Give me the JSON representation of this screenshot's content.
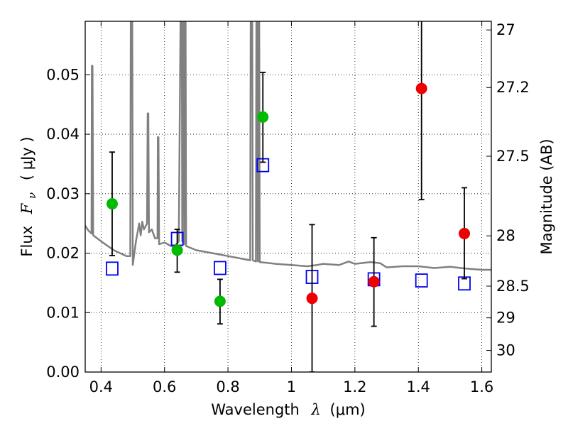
{
  "chart_data": {
    "type": "scatter",
    "title": "",
    "xlabel_prefix": "Wavelength",
    "xlabel_symbol": "λ",
    "xlabel_unit": "(μm)",
    "ylabel_prefix": "Flux",
    "ylabel_symbol": "F",
    "ylabel_subscript": "ν",
    "ylabel_unit": "( μJy )",
    "ylabel_right": "Magnitude (AB)",
    "xlim": [
      0.35,
      1.63
    ],
    "ylim": [
      0.0,
      0.059
    ],
    "grid": true,
    "x_ticks": [
      0.4,
      0.6,
      0.8,
      1.0,
      1.2,
      1.4,
      1.6
    ],
    "x_tick_labels": [
      "0.4",
      "0.6",
      "0.8",
      "1",
      "1.2",
      "1.4",
      "1.6"
    ],
    "y_ticks": [
      0.0,
      0.01,
      0.02,
      0.03,
      0.04,
      0.05
    ],
    "y_tick_labels": [
      "0.00",
      "0.01",
      "0.02",
      "0.03",
      "0.04",
      "0.05"
    ],
    "right_ticks": [
      {
        "mag": 27,
        "label": "27"
      },
      {
        "mag": 27.2,
        "label": "27.2"
      },
      {
        "mag": 27.5,
        "label": "27.5"
      },
      {
        "mag": 28,
        "label": "28"
      },
      {
        "mag": 28.5,
        "label": "28.5"
      },
      {
        "mag": 29,
        "label": "29"
      },
      {
        "mag": 30,
        "label": "30"
      }
    ],
    "series": [
      {
        "marker": "circle",
        "color": "#00bb00",
        "points": [
          {
            "x": 0.435,
            "y": 0.0283,
            "err_low": 0.0196,
            "err_high": 0.037
          },
          {
            "x": 0.64,
            "y": 0.0205,
            "err_low": 0.0168,
            "err_high": 0.024
          },
          {
            "x": 0.775,
            "y": 0.0119,
            "err_low": 0.0081,
            "err_high": 0.0156
          },
          {
            "x": 0.91,
            "y": 0.0429,
            "err_low": 0.0353,
            "err_high": 0.0504
          }
        ]
      },
      {
        "marker": "circle",
        "color": "#ee0000",
        "points": [
          {
            "x": 1.065,
            "y": 0.0124,
            "err_low": 0.0,
            "err_high": 0.0248
          },
          {
            "x": 1.26,
            "y": 0.0152,
            "err_low": 0.0077,
            "err_high": 0.0226
          },
          {
            "x": 1.41,
            "y": 0.0477,
            "err_low": 0.029,
            "err_high": 0.0595
          },
          {
            "x": 1.545,
            "y": 0.0233,
            "err_low": 0.0157,
            "err_high": 0.031
          }
        ]
      },
      {
        "marker": "square",
        "color": "#0000ee",
        "points": [
          {
            "x": 0.435,
            "y": 0.0174
          },
          {
            "x": 0.64,
            "y": 0.0224
          },
          {
            "x": 0.775,
            "y": 0.0175
          },
          {
            "x": 0.91,
            "y": 0.0348
          },
          {
            "x": 1.065,
            "y": 0.016
          },
          {
            "x": 1.26,
            "y": 0.0156
          },
          {
            "x": 1.41,
            "y": 0.0154
          },
          {
            "x": 1.545,
            "y": 0.0149
          }
        ]
      },
      {
        "marker": "line",
        "color": "#808080",
        "points": [
          [
            0.35,
            0.0246
          ],
          [
            0.36,
            0.0238
          ],
          [
            0.37,
            0.0233
          ],
          [
            0.371,
            0.0515
          ],
          [
            0.373,
            0.0515
          ],
          [
            0.375,
            0.023
          ],
          [
            0.4,
            0.022
          ],
          [
            0.44,
            0.0205
          ],
          [
            0.48,
            0.0195
          ],
          [
            0.492,
            0.0195
          ],
          [
            0.494,
            0.07
          ],
          [
            0.498,
            0.07
          ],
          [
            0.5,
            0.018
          ],
          [
            0.51,
            0.022
          ],
          [
            0.52,
            0.025
          ],
          [
            0.525,
            0.023
          ],
          [
            0.53,
            0.0253
          ],
          [
            0.535,
            0.024
          ],
          [
            0.545,
            0.025
          ],
          [
            0.547,
            0.0435
          ],
          [
            0.549,
            0.0435
          ],
          [
            0.551,
            0.0235
          ],
          [
            0.56,
            0.024
          ],
          [
            0.57,
            0.0225
          ],
          [
            0.578,
            0.0225
          ],
          [
            0.579,
            0.0395
          ],
          [
            0.581,
            0.0395
          ],
          [
            0.583,
            0.0215
          ],
          [
            0.6,
            0.0218
          ],
          [
            0.62,
            0.0212
          ],
          [
            0.63,
            0.021
          ],
          [
            0.645,
            0.022
          ],
          [
            0.652,
            0.07
          ],
          [
            0.654,
            0.07
          ],
          [
            0.656,
            0.022
          ],
          [
            0.658,
            0.07
          ],
          [
            0.66,
            0.07
          ],
          [
            0.662,
            0.0215
          ],
          [
            0.664,
            0.07
          ],
          [
            0.666,
            0.07
          ],
          [
            0.668,
            0.0212
          ],
          [
            0.7,
            0.0205
          ],
          [
            0.75,
            0.02
          ],
          [
            0.8,
            0.0195
          ],
          [
            0.85,
            0.019
          ],
          [
            0.87,
            0.0188
          ],
          [
            0.872,
            0.07
          ],
          [
            0.876,
            0.07
          ],
          [
            0.878,
            0.0188
          ],
          [
            0.888,
            0.0186
          ],
          [
            0.89,
            0.07
          ],
          [
            0.892,
            0.07
          ],
          [
            0.894,
            0.0186
          ],
          [
            0.896,
            0.07
          ],
          [
            0.898,
            0.07
          ],
          [
            0.9,
            0.0185
          ],
          [
            0.95,
            0.0182
          ],
          [
            1.0,
            0.018
          ],
          [
            1.05,
            0.0178
          ],
          [
            1.08,
            0.018
          ],
          [
            1.1,
            0.0182
          ],
          [
            1.15,
            0.018
          ],
          [
            1.18,
            0.0186
          ],
          [
            1.2,
            0.0182
          ],
          [
            1.25,
            0.0185
          ],
          [
            1.28,
            0.0183
          ],
          [
            1.3,
            0.0176
          ],
          [
            1.35,
            0.0178
          ],
          [
            1.4,
            0.0178
          ],
          [
            1.45,
            0.0175
          ],
          [
            1.5,
            0.0177
          ],
          [
            1.55,
            0.0174
          ],
          [
            1.6,
            0.0172
          ],
          [
            1.63,
            0.0172
          ]
        ]
      }
    ]
  }
}
